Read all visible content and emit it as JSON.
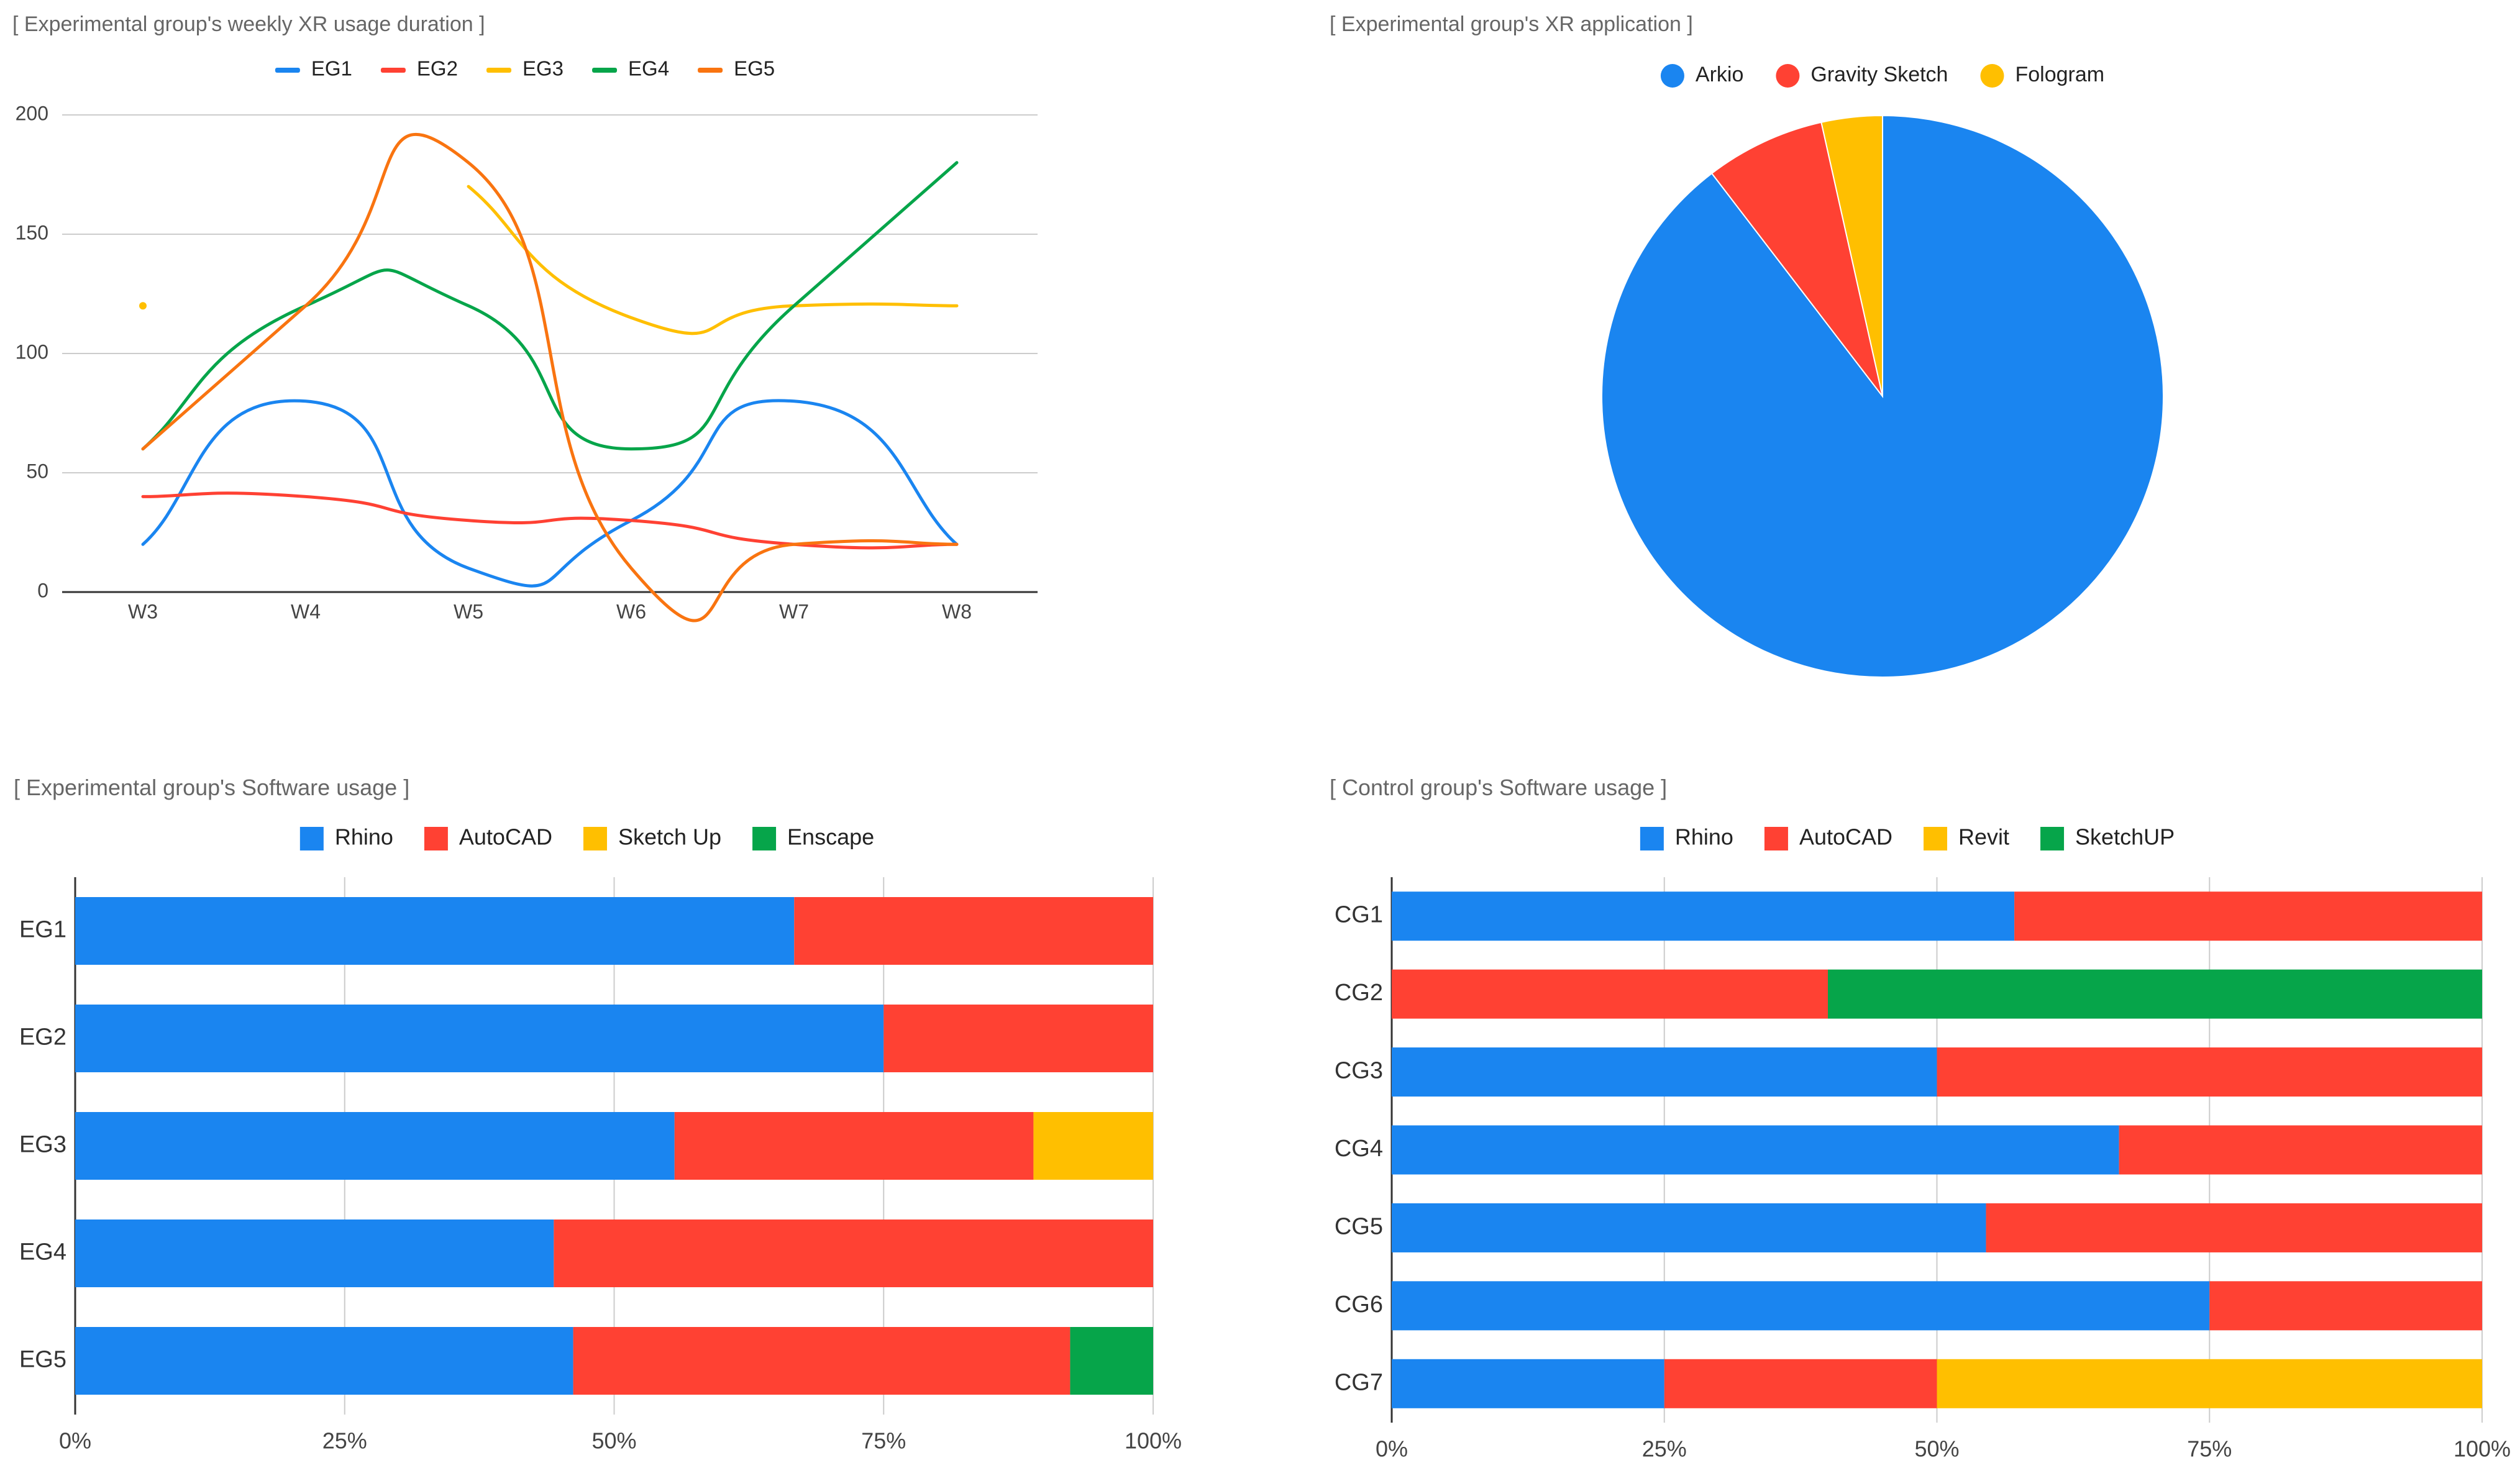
{
  "colors": {
    "blue": "#1a85f0",
    "red": "#ff4133",
    "yellow": "#ffbf00",
    "green": "#06a54a",
    "orange": "#f97410",
    "grid": "#cccccc",
    "axis": "#333333",
    "title": "#666666"
  },
  "chart_data": [
    {
      "id": "weekly-usage",
      "type": "line",
      "title": "[ Experimental group's weekly XR usage duration ]",
      "categories": [
        "W3",
        "W4",
        "W5",
        "W6",
        "W7",
        "W8"
      ],
      "ylim": [
        0,
        200
      ],
      "yticks": [
        0,
        50,
        100,
        150,
        200
      ],
      "ytick_labels": [
        "0",
        "50",
        "100",
        "150",
        "200"
      ],
      "legend_position": "top",
      "series": [
        {
          "name": "EG1",
          "color": "#1a85f0",
          "values": [
            20,
            80,
            10,
            30,
            80,
            20
          ]
        },
        {
          "name": "EG2",
          "color": "#ff4133",
          "values": [
            40,
            40,
            30,
            30,
            20,
            20
          ]
        },
        {
          "name": "EG3",
          "color": "#ffbf00",
          "values": [
            120,
            null,
            170,
            115,
            120,
            120
          ]
        },
        {
          "name": "EG4",
          "color": "#06a54a",
          "values": [
            60,
            120,
            120,
            60,
            120,
            180
          ]
        },
        {
          "name": "EG5",
          "color": "#f97410",
          "values": [
            60,
            120,
            180,
            10,
            20,
            20
          ]
        }
      ]
    },
    {
      "id": "xr-application",
      "type": "pie",
      "title": "[ Experimental group's XR application ]",
      "legend_position": "top",
      "labels": [
        "Arkio",
        "Gravity Sketch",
        "Fologram"
      ],
      "values": [
        89.6,
        6.9,
        3.5
      ],
      "colors": [
        "#1a85f0",
        "#ff4133",
        "#ffbf00"
      ]
    },
    {
      "id": "eg-software",
      "type": "bar",
      "orientation": "horizontal-stacked-percent",
      "title": "[ Experimental group's Software usage ]",
      "legend_position": "top",
      "categories": [
        "EG1",
        "EG2",
        "EG3",
        "EG4",
        "EG5"
      ],
      "xticks": [
        0,
        25,
        50,
        75,
        100
      ],
      "xtick_labels": [
        "0%",
        "25%",
        "50%",
        "75%",
        "100%"
      ],
      "series": [
        {
          "name": "Rhino",
          "color": "#1a85f0",
          "values": [
            66.7,
            75,
            55.6,
            44.4,
            46.2
          ]
        },
        {
          "name": "AutoCAD",
          "color": "#ff4133",
          "values": [
            33.3,
            25,
            33.3,
            55.6,
            46.1
          ]
        },
        {
          "name": "Sketch Up",
          "color": "#ffbf00",
          "values": [
            0,
            0,
            11.1,
            0,
            0
          ]
        },
        {
          "name": "Enscape",
          "color": "#06a54a",
          "values": [
            0,
            0,
            0,
            0,
            7.7
          ]
        }
      ]
    },
    {
      "id": "cg-software",
      "type": "bar",
      "orientation": "horizontal-stacked-percent",
      "title": "[ Control group's Software usage ]",
      "legend_position": "top",
      "categories": [
        "CG1",
        "CG2",
        "CG3",
        "CG4",
        "CG5",
        "CG6",
        "CG7"
      ],
      "xticks": [
        0,
        25,
        50,
        75,
        100
      ],
      "xtick_labels": [
        "0%",
        "25%",
        "50%",
        "75%",
        "100%"
      ],
      "series": [
        {
          "name": "Rhino",
          "color": "#1a85f0",
          "values": [
            57.1,
            0,
            50,
            66.7,
            54.5,
            75,
            25
          ]
        },
        {
          "name": "AutoCAD",
          "color": "#ff4133",
          "values": [
            42.9,
            40,
            50,
            33.3,
            45.5,
            25,
            25
          ]
        },
        {
          "name": "Revit",
          "color": "#ffbf00",
          "values": [
            0,
            0,
            0,
            0,
            0,
            0,
            50
          ]
        },
        {
          "name": "SketchUP",
          "color": "#06a54a",
          "values": [
            0,
            60,
            0,
            0,
            0,
            0,
            0
          ]
        }
      ]
    }
  ]
}
